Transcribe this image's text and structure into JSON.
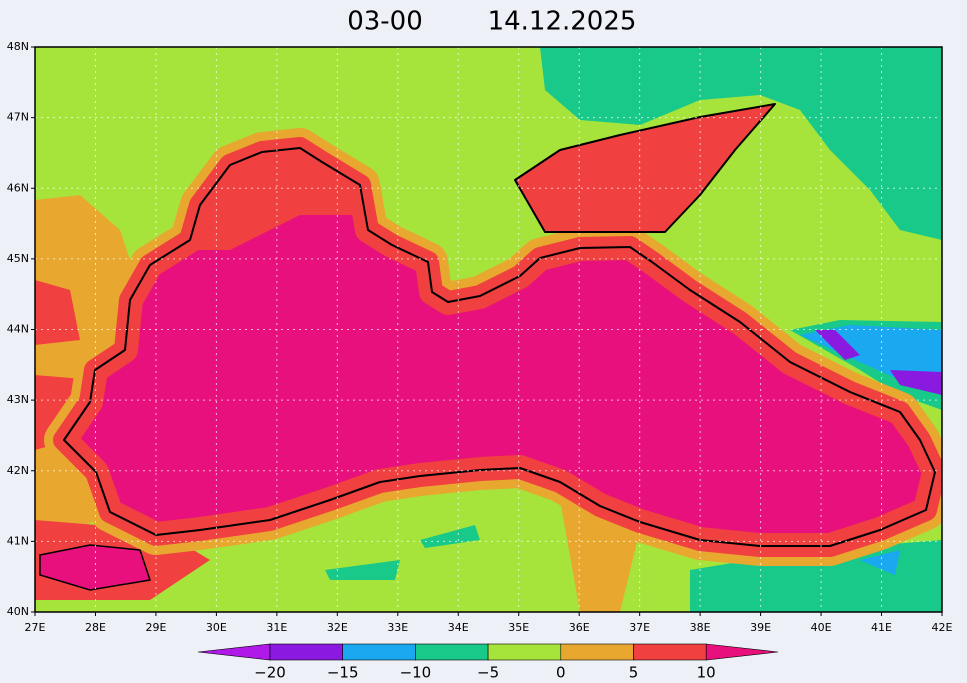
{
  "header": {
    "time": "03-00",
    "date": "14.12.2025"
  },
  "map": {
    "lat_labels": [
      "48N",
      "47N",
      "46N",
      "45N",
      "44N",
      "43N",
      "42N",
      "41N",
      "40N"
    ],
    "lon_labels": [
      "27E",
      "28E",
      "29E",
      "30E",
      "31E",
      "32E",
      "33E",
      "34E",
      "35E",
      "36E",
      "37E",
      "38E",
      "39E",
      "40E",
      "41E",
      "42E"
    ]
  },
  "colorbar": {
    "labels": [
      "−20",
      "−15",
      "−10",
      "−5",
      "0",
      "5",
      "10"
    ]
  }
}
